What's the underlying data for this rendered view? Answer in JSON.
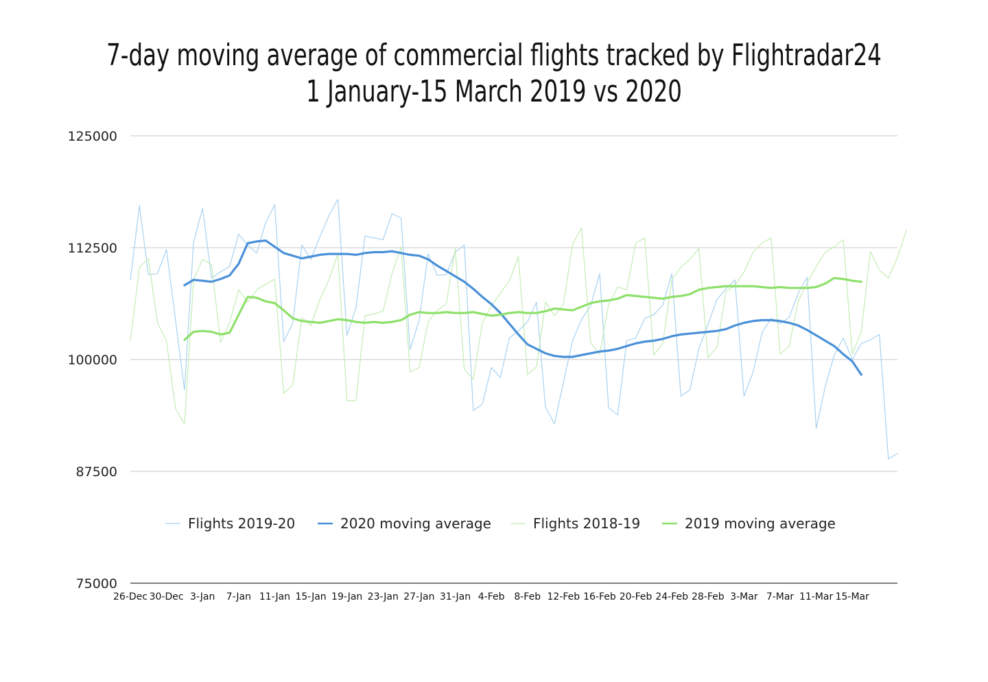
{
  "chart_data": {
    "type": "line",
    "title": "7-day moving average of commercial flights tracked by Flightradar24",
    "subtitle": "1 January-15 March 2019 vs 2020",
    "ylim": [
      75000,
      125000
    ],
    "yticks": [
      "125000",
      "112500",
      "100000",
      "87500",
      "75000"
    ],
    "xticks": [
      "26-Dec",
      "30-Dec",
      "3-Jan",
      "7-Jan",
      "11-Jan",
      "15-Jan",
      "19-Jan",
      "23-Jan",
      "27-Jan",
      "31-Jan",
      "4-Feb",
      "8-Feb",
      "12-Feb",
      "16-Feb",
      "20-Feb",
      "24-Feb",
      "28-Feb",
      "3-Mar",
      "7-Mar",
      "11-Mar",
      "15-Mar"
    ],
    "x_start": "26-Dec",
    "x_end": "15-Mar",
    "grid": true,
    "legend_position": "bottom",
    "series": [
      {
        "name": "Flights 2019-20",
        "color": "#a8d1f0",
        "width": 1.2,
        "values": [
          108900,
          117200,
          109500,
          109600,
          112300,
          104400,
          96600,
          113100,
          116900,
          109100,
          109800,
          110400,
          114000,
          112800,
          111900,
          115300,
          117300,
          102000,
          104100,
          112800,
          111200,
          113700,
          116100,
          117900,
          102700,
          105800,
          113800,
          113600,
          113400,
          116300,
          115800,
          101100,
          104400,
          111800,
          109400,
          109500,
          112000,
          112800,
          94300,
          95000,
          99100,
          98000,
          102400,
          103200,
          104200,
          106400,
          94700,
          92800,
          97500,
          102100,
          104500,
          106000,
          109600,
          94600,
          93800,
          102100,
          102400,
          104600,
          105000,
          106100,
          109600,
          95900,
          96600,
          101200,
          103900,
          106700,
          107900,
          108900,
          95900,
          98600,
          103000,
          104600,
          104000,
          104700,
          107400,
          109200,
          92300,
          97000,
          100500,
          102400,
          100000,
          101800,
          102200,
          102800,
          88900,
          89500
        ],
        "start_index": 0
      },
      {
        "name": "2020 moving average",
        "color": "#4a90d9",
        "width": 3.2,
        "values": [
          108300,
          108900,
          108800,
          108700,
          109000,
          109400,
          110700,
          113000,
          113200,
          113300,
          112600,
          111900,
          111600,
          111300,
          111500,
          111700,
          111800,
          111800,
          111800,
          111700,
          111900,
          112000,
          112000,
          112100,
          111900,
          111700,
          111600,
          111200,
          110500,
          109900,
          109300,
          108700,
          107900,
          107000,
          106200,
          105200,
          104000,
          102800,
          101700,
          101200,
          100700,
          100400,
          100300,
          100300,
          100500,
          100700,
          100900,
          101000,
          101200,
          101500,
          101800,
          102000,
          102100,
          102300,
          102600,
          102800,
          102900,
          103000,
          103100,
          103200,
          103400,
          103800,
          104100,
          104300,
          104400,
          104400,
          104300,
          104100,
          103800,
          103300,
          102700,
          102100,
          101500,
          100600,
          99800,
          98300
        ],
        "start_index": 6
      },
      {
        "name": "Flights 2018-19",
        "color": "#c4ecb4",
        "width": 1.2,
        "values": [
          102100,
          110300,
          111300,
          104100,
          102100,
          94500,
          92800,
          108900,
          111200,
          110600,
          101900,
          104100,
          107800,
          106400,
          107800,
          108400,
          109000,
          96200,
          97200,
          104700,
          103800,
          106700,
          108900,
          111800,
          95400,
          95400,
          104900,
          105100,
          105400,
          109600,
          112600,
          98600,
          99100,
          104200,
          105500,
          106200,
          112400,
          98900,
          97800,
          104100,
          106000,
          107400,
          108800,
          111500,
          98300,
          99200,
          106400,
          104900,
          106200,
          112900,
          114700,
          101900,
          100600,
          106200,
          108100,
          107800,
          113000,
          113600,
          100500,
          101800,
          108900,
          110300,
          111200,
          112400,
          100200,
          101400,
          107600,
          108300,
          109800,
          112000,
          113000,
          113600,
          100600,
          101500,
          106500,
          108600,
          110400,
          112000,
          112600,
          113400,
          100600,
          103100,
          112100,
          110000,
          109100,
          111400,
          114500
        ],
        "start_index": 0
      },
      {
        "name": "2019 moving average",
        "color": "#8ee06a",
        "width": 3.2,
        "values": [
          102200,
          103100,
          103200,
          103100,
          102800,
          103000,
          105000,
          107000,
          106900,
          106500,
          106300,
          105500,
          104600,
          104300,
          104200,
          104100,
          104300,
          104500,
          104400,
          104200,
          104100,
          104200,
          104100,
          104200,
          104400,
          105000,
          105300,
          105200,
          105200,
          105300,
          105200,
          105200,
          105300,
          105100,
          104900,
          105000,
          105200,
          105300,
          105200,
          105200,
          105400,
          105700,
          105600,
          105500,
          105900,
          106300,
          106500,
          106600,
          106800,
          107200,
          107100,
          107000,
          106900,
          106800,
          107000,
          107100,
          107300,
          107800,
          108000,
          108100,
          108200,
          108200,
          108200,
          108200,
          108100,
          108000,
          108100,
          108000,
          108000,
          108000,
          108100,
          108500,
          109100,
          109000,
          108800,
          108700
        ],
        "start_index": 6
      }
    ]
  }
}
